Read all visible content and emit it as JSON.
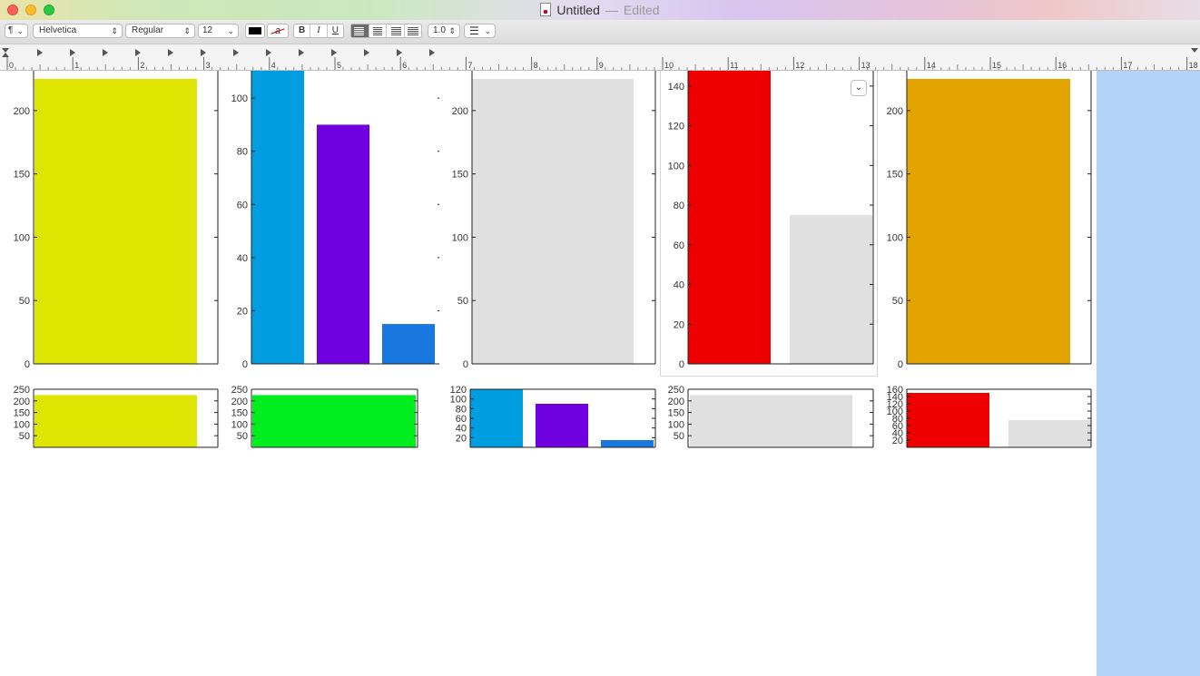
{
  "window": {
    "title": "Untitled",
    "separator": "—",
    "status": "Edited"
  },
  "toolbar": {
    "paragraph_style": "¶",
    "font_family": "Helvetica",
    "font_style": "Regular",
    "font_size": "12",
    "bold": "B",
    "italic": "I",
    "underline": "U",
    "text_color": "#000000",
    "highlight_icon": "a",
    "alignment": [
      "left",
      "center",
      "right",
      "justify"
    ],
    "active_alignment": "left",
    "line_spacing": "1.0",
    "list_icon": "list-icon"
  },
  "ruler": {
    "labels": [
      "0",
      "1",
      "2",
      "3",
      "4",
      "5",
      "6",
      "7",
      "8",
      "9",
      "10",
      "11",
      "12",
      "13",
      "14",
      "15",
      "16",
      "17",
      "18"
    ]
  },
  "image_menu": {
    "icon": "chevron-down-icon"
  },
  "colors": {
    "yellow": "#dde500",
    "blue": "#009ee0",
    "purple": "#7000e0",
    "royal_blue": "#1978e0",
    "gray": "#e0e0e0",
    "red": "#ee0000",
    "orange": "#e3a400",
    "green": "#00ee20",
    "selection": "#b3d3f9"
  },
  "chart_data": [
    {
      "type": "bar",
      "position": "row1-col1",
      "ylim": [
        0,
        235
      ],
      "yticks": [
        0,
        50,
        100,
        150,
        200
      ],
      "values": [
        225
      ],
      "colors": [
        "#dde500"
      ]
    },
    {
      "type": "bar",
      "position": "row1-col2",
      "ylim": [
        0,
        112
      ],
      "yticks": [
        0,
        20,
        40,
        60,
        80,
        100
      ],
      "values": [
        120,
        90,
        15
      ],
      "colors": [
        "#009ee0",
        "#7000e0",
        "#1978e0"
      ]
    },
    {
      "type": "bar",
      "position": "row1-col3",
      "ylim": [
        0,
        235
      ],
      "yticks": [
        0,
        50,
        100,
        150,
        200
      ],
      "values": [
        225
      ],
      "colors": [
        "#e0e0e0"
      ]
    },
    {
      "type": "bar",
      "position": "row1-col4",
      "ylim": [
        0,
        150
      ],
      "yticks": [
        0,
        20,
        40,
        60,
        80,
        100,
        120,
        140
      ],
      "values": [
        160,
        75
      ],
      "colors": [
        "#ee0000",
        "#e0e0e0"
      ]
    },
    {
      "type": "bar",
      "position": "row1-col5",
      "ylim": [
        0,
        235
      ],
      "yticks": [
        0,
        50,
        100,
        150,
        200
      ],
      "values": [
        225
      ],
      "colors": [
        "#e3a400"
      ]
    },
    {
      "type": "bar",
      "position": "row2-col1",
      "ylim": [
        0,
        250
      ],
      "yticks": [
        50,
        100,
        150,
        200,
        250
      ],
      "values": [
        225
      ],
      "colors": [
        "#dde500"
      ]
    },
    {
      "type": "bar",
      "position": "row2-col2",
      "ylim": [
        0,
        250
      ],
      "yticks": [
        50,
        100,
        150,
        200,
        250
      ],
      "values": [
        225
      ],
      "colors": [
        "#00ee20"
      ]
    },
    {
      "type": "bar",
      "position": "row2-col3",
      "ylim": [
        0,
        120
      ],
      "yticks": [
        20,
        40,
        60,
        80,
        100,
        120
      ],
      "values": [
        120,
        90,
        15
      ],
      "colors": [
        "#009ee0",
        "#7000e0",
        "#1978e0"
      ]
    },
    {
      "type": "bar",
      "position": "row2-col4",
      "ylim": [
        0,
        250
      ],
      "yticks": [
        50,
        100,
        150,
        200,
        250
      ],
      "values": [
        225
      ],
      "colors": [
        "#e0e0e0"
      ]
    },
    {
      "type": "bar",
      "position": "row2-col5",
      "ylim": [
        0,
        160
      ],
      "yticks": [
        20,
        40,
        60,
        80,
        100,
        120,
        140,
        160
      ],
      "values": [
        150,
        75
      ],
      "colors": [
        "#ee0000",
        "#e0e0e0"
      ]
    }
  ]
}
